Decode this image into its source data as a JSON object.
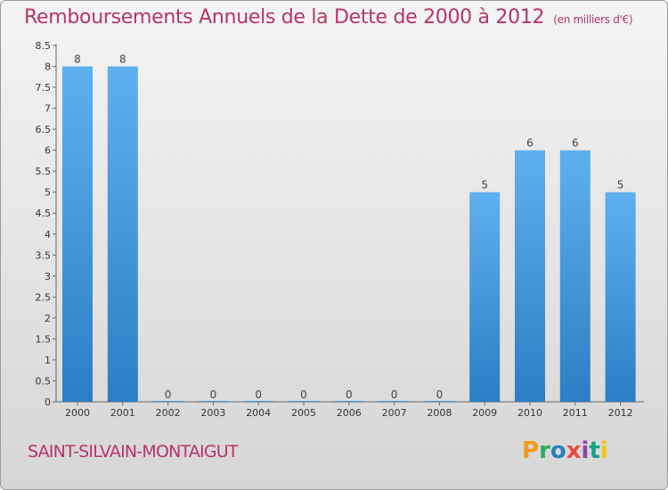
{
  "header": {
    "title": "Remboursements Annuels de la Dette de 2000 à 2012",
    "unit": "(en milliers d'€)"
  },
  "footer": {
    "place": "SAINT-SILVAIN-MONTAIGUT",
    "logo": "Proxiti"
  },
  "colors": {
    "bar_top": "#5fb0ef",
    "bar_bottom": "#2a7ec4",
    "title": "#b8336a"
  },
  "chart_data": {
    "type": "bar",
    "title": "Remboursements Annuels de la Dette de 2000 à 2012",
    "xlabel": "",
    "ylabel": "",
    "categories": [
      "2000",
      "2001",
      "2002",
      "2003",
      "2004",
      "2005",
      "2006",
      "2007",
      "2008",
      "2009",
      "2010",
      "2011",
      "2012"
    ],
    "values": [
      8,
      8,
      0,
      0,
      0,
      0,
      0,
      0,
      0,
      5,
      6,
      6,
      5
    ],
    "value_labels": [
      "8",
      "8",
      "0",
      "0",
      "0",
      "0",
      "0",
      "0",
      "0",
      "5",
      "6",
      "6",
      "5"
    ],
    "ylim": [
      0,
      8.5
    ],
    "yticks": [
      "0",
      "0.5",
      "1",
      "1.5",
      "2",
      "2.5",
      "3",
      "3.5",
      "4",
      "4.5",
      "5",
      "5.5",
      "6",
      "6.5",
      "7",
      "7.5",
      "8",
      "8.5"
    ],
    "grid": false,
    "legend": "none"
  }
}
